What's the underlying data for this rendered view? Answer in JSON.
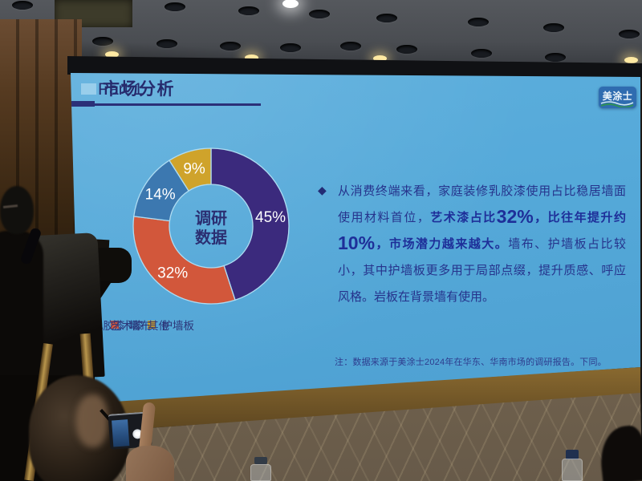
{
  "slide": {
    "header": {
      "title_prefix": "Part 1",
      "title_main": "市场分析"
    },
    "logo": {
      "text": "美涂士"
    },
    "bullet_char": "◆",
    "paragraph_segments": [
      {
        "style": "normal",
        "text": "从消费终端来看，家庭装修乳胶漆使用占比稳居墙面使用材料首位，"
      },
      {
        "style": "bold",
        "text": "艺术漆占比"
      },
      {
        "style": "num",
        "text": "32%"
      },
      {
        "style": "bold",
        "text": "，比往年提升约"
      },
      {
        "style": "num",
        "text": "10%"
      },
      {
        "style": "bold",
        "text": "，市场潜力越来越大。"
      },
      {
        "style": "normal",
        "text": "墙布、护墙板占比较小，其中护墙板更多用于局部点缀，提升质感、呼应风格。岩板在背景墙有使用。"
      }
    ],
    "note": "注：数据来源于美涂士2024年在华东、华南市场的调研报告。下同。"
  },
  "chart_data": {
    "type": "pie",
    "subtype": "donut",
    "center_label_lines": [
      "调研",
      "数据"
    ],
    "categories": [
      "乳胶漆",
      "艺术漆",
      "墙布、护墙板",
      "其他"
    ],
    "values": [
      45,
      32,
      14,
      9
    ],
    "unit": "%",
    "colors": [
      "#3b2a7d",
      "#d2573b",
      "#3c78b0",
      "#cfa32b"
    ],
    "legend_position": "bottom",
    "start_angle_deg": 0,
    "direction": "clockwise"
  },
  "colors": {
    "slide_background": "#55a9d9",
    "title_text": "#262b6d",
    "body_text": "#26338c",
    "emphasis_text": "#1e2f99",
    "percent_label": "#ffffff"
  }
}
